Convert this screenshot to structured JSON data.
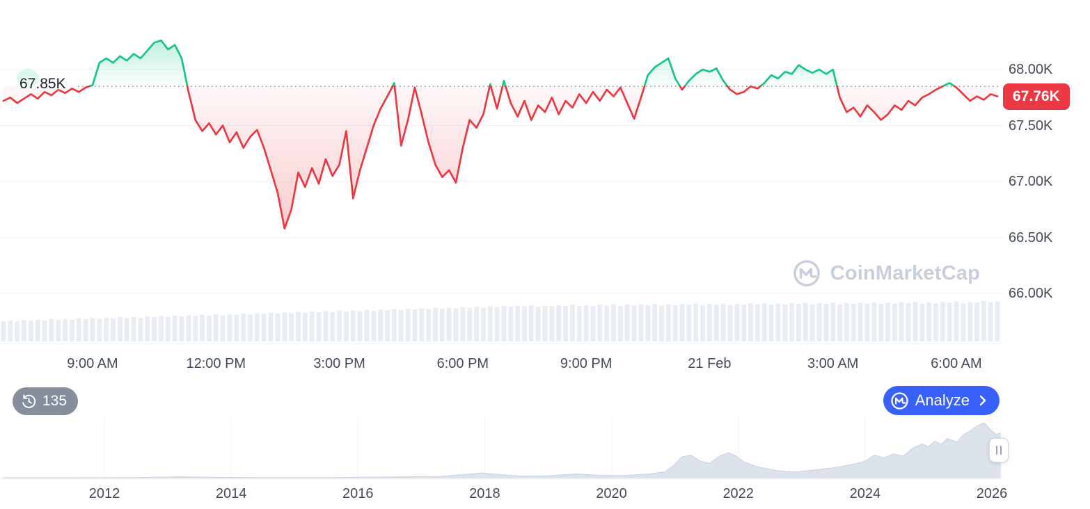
{
  "ui": {
    "baseline_label": "67.85K",
    "last_price_label": "67.76K",
    "watermark_text": "CoinMarketCap",
    "history_count": "135",
    "analyze_label": "Analyze"
  },
  "theme": {
    "up": "#16c784",
    "down": "#ea3943",
    "badge_bg": "#ea3943",
    "accent_blue": "#3861fb",
    "pill_gray": "#868e9e",
    "grid": "#f0f2f6",
    "axis_text": "#434a59",
    "volume": "#e8ecf3",
    "nav_fill": "#dce3ed",
    "nav_stroke": "#ccd5e3",
    "watermark": "#c7cfdd",
    "baseline_dot": "#7f8899"
  },
  "chart_data": [
    {
      "name": "price",
      "type": "line",
      "title": "",
      "baseline": 67.85,
      "last": 67.76,
      "ylim": [
        66.0,
        68.3
      ],
      "t_start": 10,
      "t_step": 10,
      "t_note": "minutes since 6:40 AM",
      "y_ticks": [
        [
          "68.00K",
          68.0
        ],
        [
          "67.50K",
          67.5
        ],
        [
          "67.00K",
          67.0
        ],
        [
          "66.50K",
          66.5
        ],
        [
          "66.00K",
          66.0
        ]
      ],
      "x_ticks": [
        [
          "9:00 AM",
          140
        ],
        [
          "12:00 PM",
          320
        ],
        [
          "3:00 PM",
          500
        ],
        [
          "6:00 PM",
          680
        ],
        [
          "9:00 PM",
          860
        ],
        [
          "21 Feb",
          1040
        ],
        [
          "3:00 AM",
          1220
        ],
        [
          "6:00 AM",
          1400
        ]
      ],
      "prices": [
        67.72,
        67.75,
        67.7,
        67.74,
        67.78,
        67.74,
        67.8,
        67.77,
        67.82,
        67.79,
        67.83,
        67.8,
        67.84,
        67.86,
        68.06,
        68.1,
        68.06,
        68.12,
        68.08,
        68.14,
        68.1,
        68.17,
        68.24,
        68.26,
        68.18,
        68.22,
        68.1,
        67.8,
        67.55,
        67.45,
        67.52,
        67.42,
        67.5,
        67.35,
        67.44,
        67.3,
        67.4,
        67.46,
        67.3,
        67.1,
        66.9,
        66.58,
        66.75,
        67.08,
        66.95,
        67.12,
        66.98,
        67.2,
        67.05,
        67.15,
        67.45,
        66.85,
        67.1,
        67.3,
        67.5,
        67.65,
        67.76,
        67.88,
        67.32,
        67.55,
        67.84,
        67.6,
        67.35,
        67.15,
        67.04,
        67.1,
        66.99,
        67.3,
        67.55,
        67.48,
        67.6,
        67.87,
        67.65,
        67.9,
        67.7,
        67.58,
        67.72,
        67.55,
        67.68,
        67.62,
        67.75,
        67.6,
        67.72,
        67.66,
        67.78,
        67.7,
        67.8,
        67.72,
        67.82,
        67.76,
        67.84,
        67.7,
        67.56,
        67.75,
        67.95,
        68.02,
        68.06,
        68.1,
        67.92,
        67.82,
        67.9,
        67.96,
        68.0,
        67.98,
        68.01,
        67.9,
        67.82,
        67.78,
        67.8,
        67.85,
        67.83,
        67.88,
        67.95,
        67.92,
        67.98,
        67.96,
        68.04,
        68.0,
        67.97,
        68.0,
        67.96,
        68.0,
        67.75,
        67.62,
        67.66,
        67.58,
        67.68,
        67.62,
        67.55,
        67.6,
        67.68,
        67.64,
        67.72,
        67.68,
        67.75,
        67.78,
        67.82,
        67.85,
        67.88,
        67.84,
        67.78,
        67.72,
        67.76,
        67.73,
        67.78,
        67.76
      ],
      "volume": [
        0.5,
        0.52,
        0.49,
        0.53,
        0.51,
        0.54,
        0.52,
        0.55,
        0.53,
        0.56,
        0.54,
        0.57,
        0.55,
        0.58,
        0.56,
        0.59,
        0.57,
        0.6,
        0.58,
        0.61,
        0.59,
        0.62,
        0.6,
        0.63,
        0.61,
        0.64,
        0.62,
        0.65,
        0.63,
        0.66,
        0.64,
        0.67,
        0.65,
        0.68,
        0.66,
        0.69,
        0.67,
        0.7,
        0.68,
        0.71,
        0.69,
        0.72,
        0.7,
        0.73,
        0.71,
        0.74,
        0.72,
        0.75,
        0.73,
        0.76,
        0.74,
        0.77,
        0.75,
        0.78,
        0.76,
        0.79,
        0.77,
        0.8,
        0.78,
        0.81,
        0.79,
        0.82,
        0.8,
        0.83,
        0.81,
        0.84,
        0.82,
        0.85,
        0.83,
        0.86,
        0.84,
        0.87,
        0.85,
        0.88,
        0.86,
        0.89,
        0.87,
        0.9,
        0.86,
        0.89,
        0.87,
        0.9,
        0.88,
        0.91,
        0.87,
        0.9,
        0.88,
        0.91,
        0.89,
        0.92,
        0.88,
        0.91,
        0.89,
        0.92,
        0.9,
        0.93,
        0.89,
        0.92,
        0.9,
        0.93,
        0.91,
        0.94,
        0.9,
        0.93,
        0.91,
        0.94,
        0.9,
        0.93,
        0.91,
        0.94,
        0.92,
        0.95,
        0.91,
        0.94,
        0.92,
        0.95,
        0.93,
        0.96,
        0.92,
        0.95,
        0.93,
        0.96,
        0.92,
        0.95,
        0.93,
        0.96,
        0.94,
        0.97,
        0.93,
        0.96,
        0.94,
        0.97,
        0.95,
        0.98,
        0.94,
        0.97,
        0.95,
        0.98,
        0.96,
        0.99,
        0.95,
        0.98,
        0.96,
        1.0,
        0.97,
        0.99
      ]
    },
    {
      "name": "navigator",
      "type": "area",
      "x_ticks": [
        [
          "2012",
          2012
        ],
        [
          "2014",
          2014
        ],
        [
          "2016",
          2016
        ],
        [
          "2018",
          2018
        ],
        [
          "2020",
          2020
        ],
        [
          "2022",
          2022
        ],
        [
          "2024",
          2024
        ],
        [
          "2026",
          2026
        ]
      ],
      "points": [
        [
          2010.4,
          0.012
        ],
        [
          2011.5,
          0.012
        ],
        [
          2012.5,
          0.015
        ],
        [
          2013.2,
          0.03
        ],
        [
          2013.6,
          0.02
        ],
        [
          2014.5,
          0.015
        ],
        [
          2015.5,
          0.015
        ],
        [
          2016.5,
          0.025
        ],
        [
          2017.3,
          0.035
        ],
        [
          2017.7,
          0.07
        ],
        [
          2017.95,
          0.1
        ],
        [
          2018.2,
          0.07
        ],
        [
          2018.6,
          0.04
        ],
        [
          2019.0,
          0.045
        ],
        [
          2019.45,
          0.08
        ],
        [
          2019.8,
          0.055
        ],
        [
          2020.2,
          0.05
        ],
        [
          2020.6,
          0.08
        ],
        [
          2020.85,
          0.12
        ],
        [
          2021.0,
          0.25
        ],
        [
          2021.1,
          0.38
        ],
        [
          2021.25,
          0.42
        ],
        [
          2021.4,
          0.31
        ],
        [
          2021.55,
          0.27
        ],
        [
          2021.7,
          0.4
        ],
        [
          2021.85,
          0.46
        ],
        [
          2021.95,
          0.41
        ],
        [
          2022.1,
          0.29
        ],
        [
          2022.3,
          0.21
        ],
        [
          2022.6,
          0.14
        ],
        [
          2022.9,
          0.115
        ],
        [
          2023.2,
          0.15
        ],
        [
          2023.5,
          0.19
        ],
        [
          2023.8,
          0.25
        ],
        [
          2024.0,
          0.31
        ],
        [
          2024.15,
          0.42
        ],
        [
          2024.3,
          0.37
        ],
        [
          2024.45,
          0.44
        ],
        [
          2024.6,
          0.4
        ],
        [
          2024.75,
          0.54
        ],
        [
          2024.9,
          0.62
        ],
        [
          2025.0,
          0.57
        ],
        [
          2025.1,
          0.67
        ],
        [
          2025.2,
          0.61
        ],
        [
          2025.3,
          0.72
        ],
        [
          2025.45,
          0.65
        ],
        [
          2025.55,
          0.78
        ],
        [
          2025.65,
          0.85
        ],
        [
          2025.78,
          0.95
        ],
        [
          2025.88,
          1.0
        ],
        [
          2025.98,
          0.87
        ],
        [
          2026.07,
          0.79
        ],
        [
          2026.14,
          0.82
        ]
      ]
    }
  ]
}
